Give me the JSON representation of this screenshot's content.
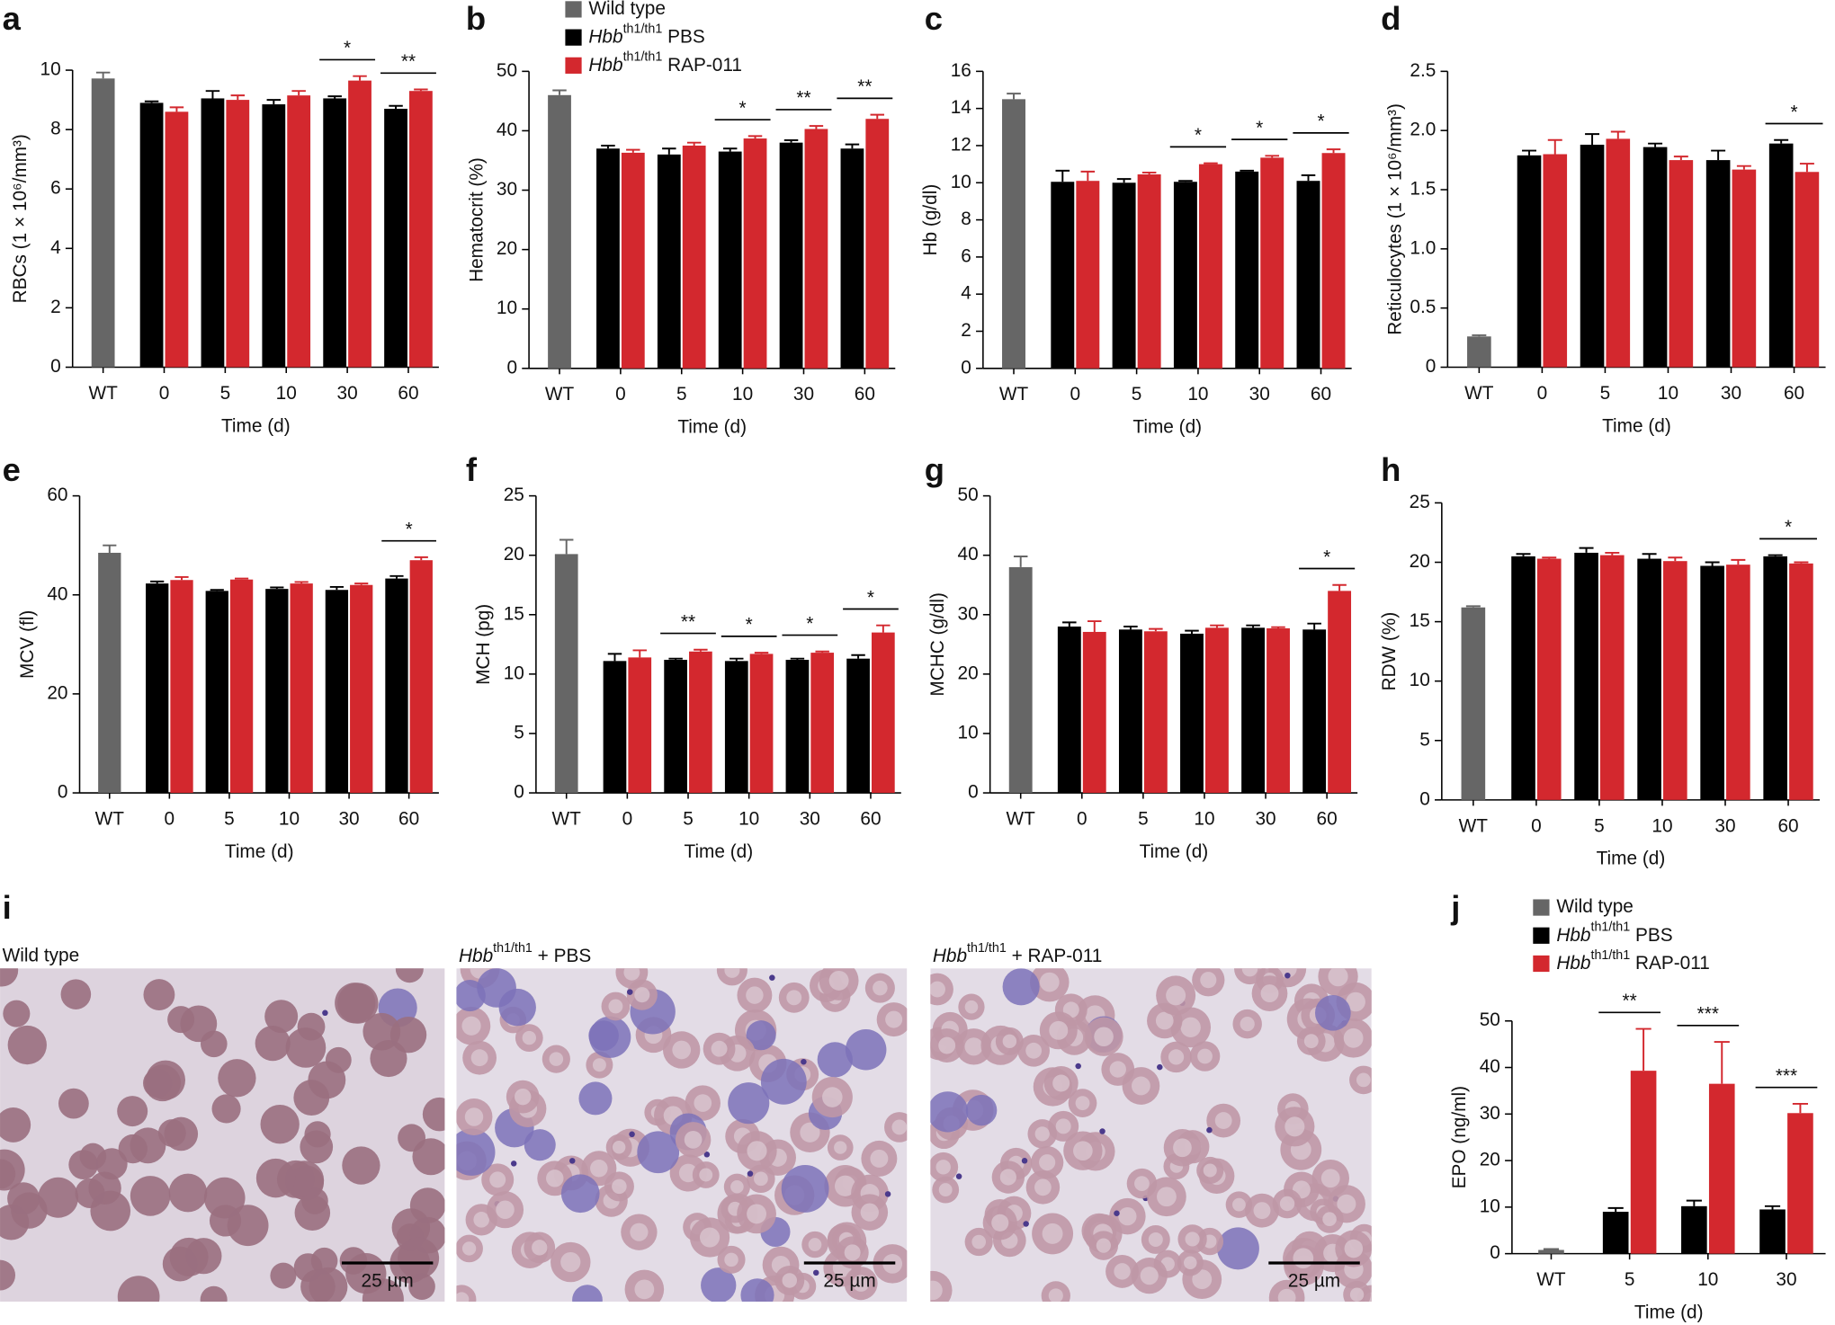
{
  "chart_data": [
    {
      "type": "bar",
      "panel": "a",
      "ylabel": "RBCs (1 × 10⁶/mm³)",
      "xlabel": "Time (d)",
      "categories": [
        "WT",
        "0",
        "5",
        "10",
        "30",
        "60"
      ],
      "series": [
        {
          "color": "#666666",
          "values": [
            9.72,
            null,
            null,
            null,
            null,
            null
          ],
          "errors": [
            0.2,
            null,
            null,
            null,
            null,
            null
          ]
        },
        {
          "color": "#000000",
          "values": [
            null,
            8.9,
            9.05,
            8.85,
            9.05,
            8.7
          ],
          "errors": [
            null,
            0.05,
            0.25,
            0.15,
            0.07,
            0.1
          ]
        },
        {
          "color": "#d3282e",
          "values": [
            null,
            8.6,
            9.0,
            9.15,
            9.65,
            9.3
          ],
          "errors": [
            null,
            0.15,
            0.15,
            0.15,
            0.15,
            0.05
          ]
        }
      ],
      "ylim": [
        0,
        10
      ],
      "yticks": [
        0,
        2,
        4,
        6,
        8,
        10
      ],
      "annotations": [
        {
          "x": "30",
          "text": "*"
        },
        {
          "x": "60",
          "text": "**"
        }
      ]
    },
    {
      "type": "bar",
      "panel": "b",
      "ylabel": "Hematocrit (%)",
      "xlabel": "Time (d)",
      "categories": [
        "WT",
        "0",
        "5",
        "10",
        "30",
        "60"
      ],
      "series": [
        {
          "name": "Wild type",
          "color": "#666666",
          "values": [
            46,
            null,
            null,
            null,
            null,
            null
          ],
          "errors": [
            0.8,
            null,
            null,
            null,
            null,
            null
          ]
        },
        {
          "name": "Hbb th1/th1 PBS",
          "color": "#000000",
          "values": [
            null,
            37,
            36,
            36.5,
            38,
            37
          ],
          "errors": [
            null,
            0.5,
            1,
            0.5,
            0.4,
            0.7
          ]
        },
        {
          "name": "Hbb th1/th1 RAP-011",
          "color": "#d3282e",
          "values": [
            null,
            36.3,
            37.5,
            38.7,
            40.3,
            42
          ],
          "errors": [
            null,
            0.5,
            0.5,
            0.4,
            0.5,
            0.7
          ]
        }
      ],
      "ylim": [
        0,
        50
      ],
      "yticks": [
        0,
        10,
        20,
        30,
        40,
        50
      ],
      "legend": "top",
      "annotations": [
        {
          "x": "10",
          "text": "*"
        },
        {
          "x": "30",
          "text": "**"
        },
        {
          "x": "60",
          "text": "**"
        }
      ]
    },
    {
      "type": "bar",
      "panel": "c",
      "ylabel": "Hb (g/dl)",
      "xlabel": "Time (d)",
      "categories": [
        "WT",
        "0",
        "5",
        "10",
        "30",
        "60"
      ],
      "series": [
        {
          "color": "#666666",
          "values": [
            14.5,
            null,
            null,
            null,
            null,
            null
          ],
          "errors": [
            0.3,
            null,
            null,
            null,
            null,
            null
          ]
        },
        {
          "color": "#000000",
          "values": [
            null,
            10.05,
            10.0,
            10.05,
            10.6,
            10.1
          ],
          "errors": [
            null,
            0.6,
            0.2,
            0.05,
            0.05,
            0.3
          ]
        },
        {
          "color": "#d3282e",
          "values": [
            null,
            10.1,
            10.45,
            11.0,
            11.35,
            11.6
          ],
          "errors": [
            null,
            0.5,
            0.1,
            0.05,
            0.1,
            0.2
          ]
        }
      ],
      "ylim": [
        0,
        16
      ],
      "yticks": [
        0,
        2,
        4,
        6,
        8,
        10,
        12,
        14,
        16
      ],
      "annotations": [
        {
          "x": "10",
          "text": "*"
        },
        {
          "x": "30",
          "text": "*"
        },
        {
          "x": "60",
          "text": "*"
        }
      ]
    },
    {
      "type": "bar",
      "panel": "d",
      "ylabel": "Reticulocytes (1 × 10⁶/mm³)",
      "xlabel": "Time (d)",
      "categories": [
        "WT",
        "0",
        "5",
        "10",
        "30",
        "60"
      ],
      "series": [
        {
          "color": "#666666",
          "values": [
            0.26,
            null,
            null,
            null,
            null,
            null
          ],
          "errors": [
            0.01,
            null,
            null,
            null,
            null,
            null
          ]
        },
        {
          "color": "#000000",
          "values": [
            null,
            1.79,
            1.88,
            1.86,
            1.75,
            1.89
          ],
          "errors": [
            null,
            0.04,
            0.09,
            0.03,
            0.08,
            0.03
          ]
        },
        {
          "color": "#d3282e",
          "values": [
            null,
            1.8,
            1.93,
            1.75,
            1.67,
            1.65
          ],
          "errors": [
            null,
            0.12,
            0.06,
            0.03,
            0.03,
            0.07
          ]
        }
      ],
      "ylim": [
        0,
        2.5
      ],
      "yticks": [
        0,
        0.5,
        {
          "value": 1,
          "label": "1.0"
        },
        1.5,
        {
          "value": 2,
          "label": "2.0"
        },
        2.5
      ],
      "annotations": [
        {
          "x": "60",
          "text": "*"
        }
      ]
    },
    {
      "type": "bar",
      "panel": "e",
      "ylabel": "MCV (fl)",
      "xlabel": "Time (d)",
      "categories": [
        "WT",
        "0",
        "5",
        "10",
        "30",
        "60"
      ],
      "series": [
        {
          "color": "#666666",
          "values": [
            48.5,
            null,
            null,
            null,
            null,
            null
          ],
          "errors": [
            1.5,
            null,
            null,
            null,
            null,
            null
          ]
        },
        {
          "color": "#000000",
          "values": [
            null,
            42.3,
            40.8,
            41.2,
            41,
            43.3
          ],
          "errors": [
            null,
            0.4,
            0.2,
            0.3,
            0.6,
            0.5
          ]
        },
        {
          "color": "#d3282e",
          "values": [
            null,
            43,
            43.1,
            42.3,
            42,
            47
          ],
          "errors": [
            null,
            0.6,
            0.2,
            0.3,
            0.3,
            0.6
          ]
        }
      ],
      "ylim": [
        0,
        60
      ],
      "yticks": [
        0,
        20,
        40,
        60
      ],
      "annotations": [
        {
          "x": "60",
          "text": "*"
        }
      ]
    },
    {
      "type": "bar",
      "panel": "f",
      "ylabel": "MCH (pg)",
      "xlabel": "Time (d)",
      "categories": [
        "WT",
        "0",
        "5",
        "10",
        "30",
        "60"
      ],
      "series": [
        {
          "color": "#666666",
          "values": [
            20.1,
            null,
            null,
            null,
            null,
            null
          ],
          "errors": [
            1.2,
            null,
            null,
            null,
            null,
            null
          ]
        },
        {
          "color": "#000000",
          "values": [
            null,
            11.1,
            11.2,
            11.1,
            11.2,
            11.3
          ],
          "errors": [
            null,
            0.6,
            0.1,
            0.2,
            0.1,
            0.3
          ]
        },
        {
          "color": "#d3282e",
          "values": [
            null,
            11.4,
            11.9,
            11.7,
            11.8,
            13.5
          ],
          "errors": [
            null,
            0.6,
            0.15,
            0.1,
            0.1,
            0.6
          ]
        }
      ],
      "ylim": [
        0,
        25
      ],
      "yticks": [
        0,
        5,
        10,
        15,
        20,
        25
      ],
      "annotations": [
        {
          "x": "5",
          "text": "**"
        },
        {
          "x": "10",
          "text": "*"
        },
        {
          "x": "30",
          "text": "*"
        },
        {
          "x": "60",
          "text": "*"
        }
      ]
    },
    {
      "type": "bar",
      "panel": "g",
      "ylabel": "MCHC (g/dl)",
      "xlabel": "Time (d)",
      "categories": [
        "WT",
        "0",
        "5",
        "10",
        "30",
        "60"
      ],
      "series": [
        {
          "color": "#666666",
          "values": [
            38,
            null,
            null,
            null,
            null,
            null
          ],
          "errors": [
            1.8,
            null,
            null,
            null,
            null,
            null
          ]
        },
        {
          "color": "#000000",
          "values": [
            null,
            28,
            27.5,
            26.8,
            27.8,
            27.5
          ],
          "errors": [
            null,
            0.7,
            0.5,
            0.5,
            0.4,
            1
          ]
        },
        {
          "color": "#d3282e",
          "values": [
            null,
            27.1,
            27.2,
            27.8,
            27.7,
            34
          ],
          "errors": [
            null,
            1.8,
            0.4,
            0.4,
            0.2,
            1
          ]
        }
      ],
      "ylim": [
        0,
        50
      ],
      "yticks": [
        0,
        10,
        20,
        30,
        40,
        50
      ],
      "annotations": [
        {
          "x": "60",
          "text": "*"
        }
      ]
    },
    {
      "type": "bar",
      "panel": "h",
      "ylabel": "RDW (%)",
      "xlabel": "Time (d)",
      "categories": [
        "WT",
        "0",
        "5",
        "10",
        "30",
        "60"
      ],
      "series": [
        {
          "color": "#666666",
          "values": [
            16.2,
            null,
            null,
            null,
            null,
            null
          ],
          "errors": [
            0.1,
            null,
            null,
            null,
            null,
            null
          ]
        },
        {
          "color": "#000000",
          "values": [
            null,
            20.5,
            20.8,
            20.3,
            19.7,
            20.5
          ],
          "errors": [
            null,
            0.2,
            0.4,
            0.4,
            0.3,
            0.1
          ]
        },
        {
          "color": "#d3282e",
          "values": [
            null,
            20.3,
            20.6,
            20.1,
            19.8,
            19.9
          ],
          "errors": [
            null,
            0.1,
            0.2,
            0.3,
            0.4,
            0.1
          ]
        }
      ],
      "ylim": [
        0,
        25
      ],
      "yticks": [
        0,
        5,
        10,
        15,
        20,
        25
      ],
      "annotations": [
        {
          "x": "60",
          "text": "*"
        }
      ]
    },
    {
      "type": "bar",
      "panel": "j",
      "ylabel": "EPO (ng/ml)",
      "xlabel": "Time (d)",
      "categories": [
        "WT",
        "5",
        "10",
        "30"
      ],
      "series": [
        {
          "name": "Wild type",
          "color": "#666666",
          "values": [
            0.8,
            null,
            null,
            null
          ],
          "errors": [
            0.2,
            null,
            null,
            null
          ]
        },
        {
          "name": "Hbb th1/th1 PBS",
          "color": "#000000",
          "values": [
            null,
            9,
            10.2,
            9.5
          ],
          "errors": [
            null,
            0.8,
            1.2,
            0.7
          ]
        },
        {
          "name": "Hbb th1/th1 RAP-011",
          "color": "#d3282e",
          "values": [
            null,
            39.3,
            36.5,
            30.2
          ],
          "errors": [
            null,
            9,
            9,
            2
          ]
        }
      ],
      "ylim": [
        0,
        50
      ],
      "yticks": [
        0,
        10,
        20,
        30,
        40,
        50
      ],
      "legend": "top",
      "annotations": [
        {
          "x": "5",
          "text": "**"
        },
        {
          "x": "10",
          "text": "***"
        },
        {
          "x": "30",
          "text": "***"
        }
      ]
    }
  ],
  "micrographs": {
    "panel": "i",
    "images": [
      {
        "label": "Wild type",
        "scale_bar": "25 µm"
      },
      {
        "label": "Hbb th1/th1 + PBS",
        "scale_bar": "25 µm"
      },
      {
        "label": "Hbb th1/th1 + RAP-011",
        "scale_bar": "25 µm"
      }
    ]
  }
}
